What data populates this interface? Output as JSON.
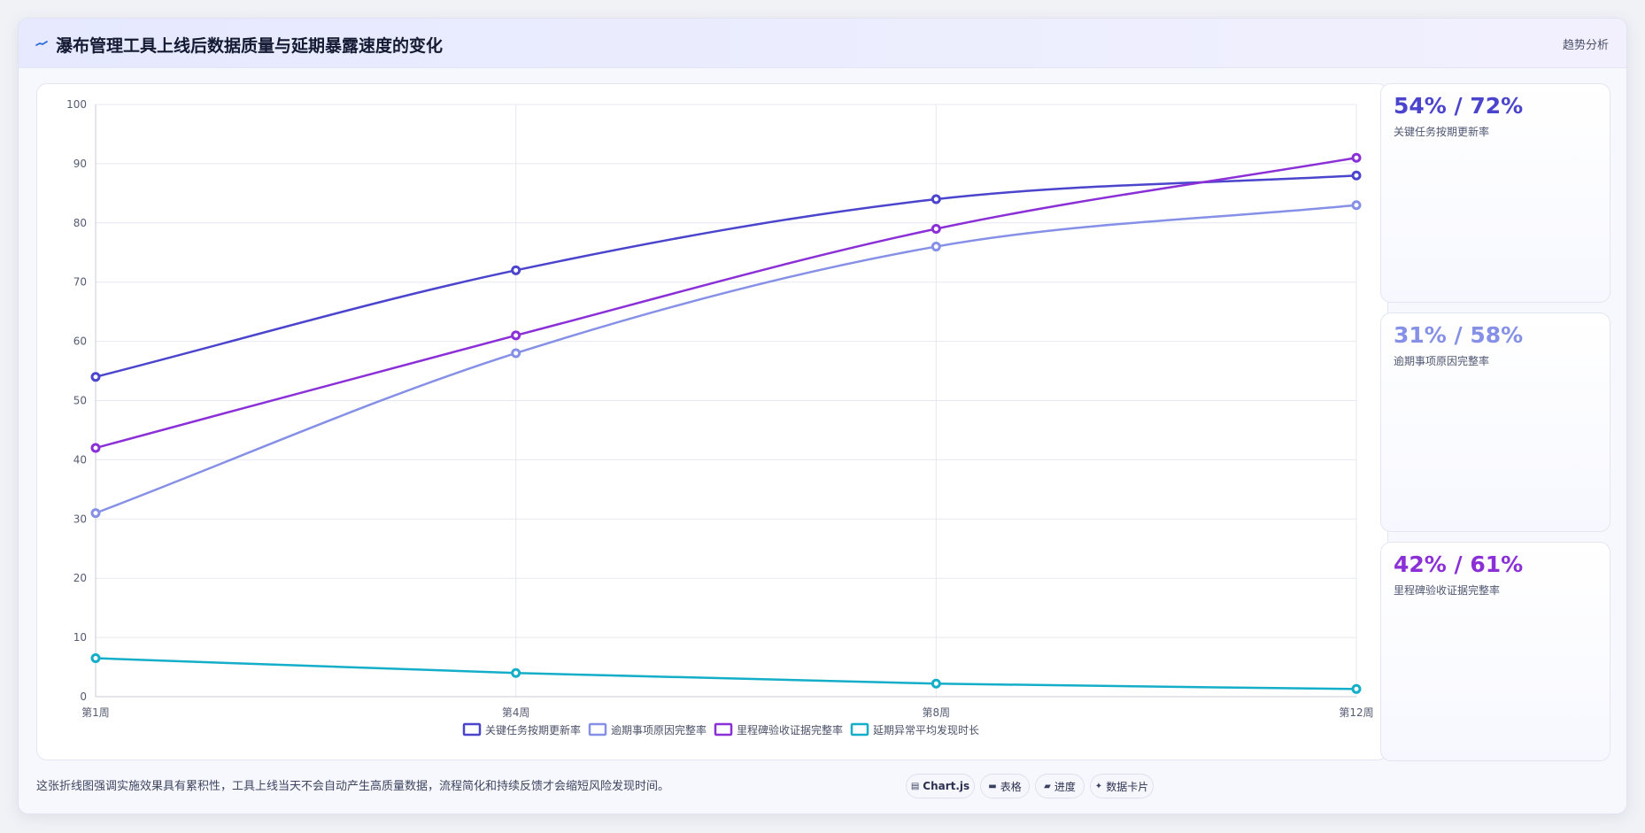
{
  "header": {
    "title": "瀑布管理工具上线后数据质量与延期暴露速度的变化",
    "tag": "趋势分析"
  },
  "chart_data": {
    "type": "line",
    "categories": [
      "第1周",
      "第4周",
      "第8周",
      "第12周"
    ],
    "ylim": [
      0,
      100
    ],
    "yticks": [
      0,
      10,
      20,
      30,
      40,
      50,
      60,
      70,
      80,
      90,
      100
    ],
    "grid": true,
    "legend_position": "bottom",
    "series": [
      {
        "name": "关键任务按期更新率",
        "values": [
          54,
          72,
          84,
          88
        ],
        "color": "#4b44cc"
      },
      {
        "name": "逾期事项原因完整率",
        "values": [
          31,
          58,
          76,
          83
        ],
        "color": "#8590e6"
      },
      {
        "name": "里程碑验收证据完整率",
        "values": [
          42,
          61,
          79,
          91
        ],
        "color": "#8b2fd6"
      },
      {
        "name": "延期异常平均发现时长",
        "values": [
          6.5,
          4,
          2.2,
          1.3
        ],
        "color": "#14aec8"
      }
    ]
  },
  "side_cards": [
    {
      "value": "54% / 72%",
      "label": "关键任务按期更新率",
      "color": "#4b44cc"
    },
    {
      "value": "31% / 58%",
      "label": "逾期事项原因完整率",
      "color": "#8590e6"
    },
    {
      "value": "42% / 61%",
      "label": "里程碑验收证据完整率",
      "color": "#8b2fd6"
    }
  ],
  "footer": {
    "note": "这张折线图强调实施效果具有累积性，工具上线当天不会自动产生高质量数据，流程简化和持续反馈才会缩短风险发现时间。",
    "pills": [
      {
        "icon": "chart-icon",
        "label": "Chart.js"
      },
      {
        "icon": "table-icon",
        "label": "表格"
      },
      {
        "icon": "progress-icon",
        "label": "进度"
      },
      {
        "icon": "sparkle-icon",
        "label": "数据卡片"
      }
    ]
  }
}
